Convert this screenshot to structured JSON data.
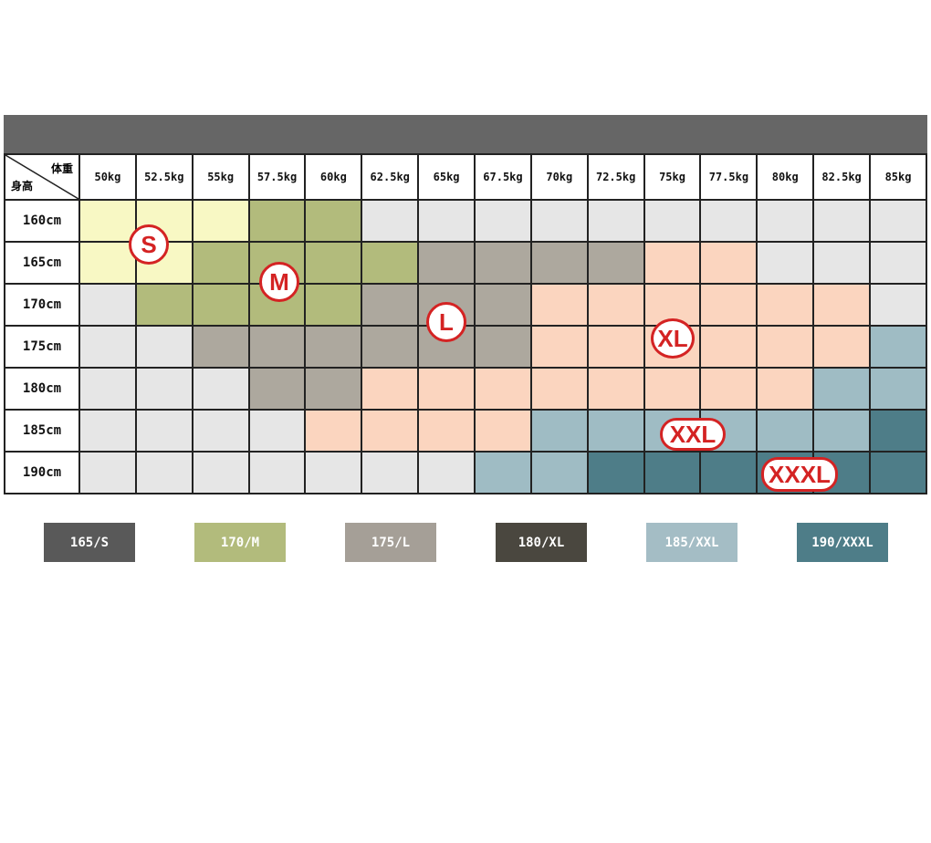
{
  "header": {
    "weight_label": "体重",
    "height_label": "身高"
  },
  "weights": [
    "50kg",
    "52.5kg",
    "55kg",
    "57.5kg",
    "60kg",
    "62.5kg",
    "65kg",
    "67.5kg",
    "70kg",
    "72.5kg",
    "75kg",
    "77.5kg",
    "80kg",
    "82.5kg",
    "85kg"
  ],
  "rows": [
    {
      "height": "160cm",
      "cells": [
        "S",
        "S",
        "S",
        "M",
        "M",
        "none",
        "none",
        "none",
        "none",
        "none",
        "none",
        "none",
        "none",
        "none",
        "none"
      ]
    },
    {
      "height": "165cm",
      "cells": [
        "S",
        "S",
        "M",
        "M",
        "M",
        "M",
        "L",
        "L",
        "L",
        "L",
        "XL",
        "XL",
        "none",
        "none",
        "none"
      ]
    },
    {
      "height": "170cm",
      "cells": [
        "none",
        "M",
        "M",
        "M",
        "M",
        "L",
        "L",
        "L",
        "XL",
        "XL",
        "XL",
        "XL",
        "XL",
        "XL",
        "none"
      ]
    },
    {
      "height": "175cm",
      "cells": [
        "none",
        "none",
        "L",
        "L",
        "L",
        "L",
        "L",
        "L",
        "XL",
        "XL",
        "XL",
        "XL",
        "XL",
        "XL",
        "XXL"
      ]
    },
    {
      "height": "180cm",
      "cells": [
        "none",
        "none",
        "none",
        "L",
        "L",
        "XL",
        "XL",
        "XL",
        "XL",
        "XL",
        "XL",
        "XL",
        "XL",
        "XXL",
        "XXL"
      ]
    },
    {
      "height": "185cm",
      "cells": [
        "none",
        "none",
        "none",
        "none",
        "XL",
        "XL",
        "XL",
        "XL",
        "XXL",
        "XXL",
        "XXL",
        "XXL",
        "XXL",
        "XXL",
        "XXXL"
      ]
    },
    {
      "height": "190cm",
      "cells": [
        "none",
        "none",
        "none",
        "none",
        "none",
        "none",
        "none",
        "XXL",
        "XXL",
        "XXXL",
        "XXXL",
        "XXXL",
        "XXXL",
        "XXXL",
        "XXXL"
      ]
    }
  ],
  "badges": [
    {
      "label": "S",
      "shape": "circle"
    },
    {
      "label": "M",
      "shape": "circle"
    },
    {
      "label": "L",
      "shape": "circle"
    },
    {
      "label": "XL",
      "shape": "circle"
    },
    {
      "label": "XXL",
      "shape": "pill"
    },
    {
      "label": "XXXL",
      "shape": "pill"
    }
  ],
  "legend": [
    {
      "label": "165/S",
      "bg": "#595959",
      "fg": "#ffffff"
    },
    {
      "label": "170/M",
      "bg": "#b2bb7c",
      "fg": "#ffffff"
    },
    {
      "label": "175/L",
      "bg": "#a59f97",
      "fg": "#ffffff"
    },
    {
      "label": "180/XL",
      "bg": "#4a473f",
      "fg": "#ffffff"
    },
    {
      "label": "185/XXL",
      "bg": "#a4bdc5",
      "fg": "#ffffff"
    },
    {
      "label": "190/XXXL",
      "bg": "#4e7d88",
      "fg": "#ffffff"
    }
  ]
}
